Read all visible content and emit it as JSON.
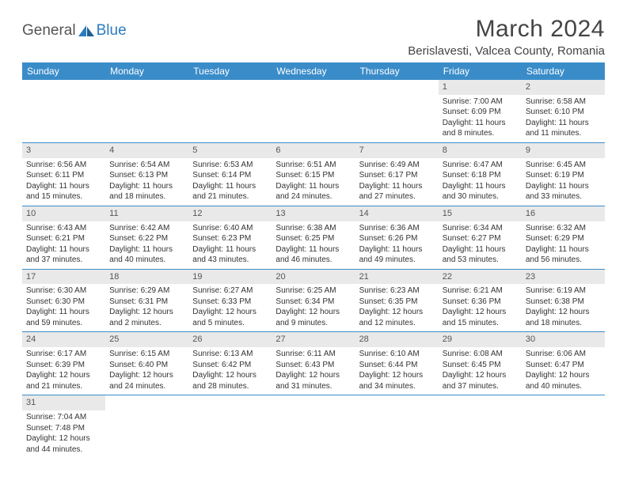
{
  "brand": {
    "part1": "General",
    "part2": "Blue"
  },
  "title": "March 2024",
  "location": "Berislavesti, Valcea County, Romania",
  "colors": {
    "header_bg": "#3a8cc9",
    "header_fg": "#ffffff",
    "daynum_bg": "#e9e9e9",
    "row_border": "#3a8cc9",
    "brand_accent": "#2b7bbf"
  },
  "weekdays": [
    "Sunday",
    "Monday",
    "Tuesday",
    "Wednesday",
    "Thursday",
    "Friday",
    "Saturday"
  ],
  "weeks": [
    [
      {
        "empty": true
      },
      {
        "empty": true
      },
      {
        "empty": true
      },
      {
        "empty": true
      },
      {
        "empty": true
      },
      {
        "n": "1",
        "sr": "Sunrise: 7:00 AM",
        "ss": "Sunset: 6:09 PM",
        "dl": "Daylight: 11 hours and 8 minutes."
      },
      {
        "n": "2",
        "sr": "Sunrise: 6:58 AM",
        "ss": "Sunset: 6:10 PM",
        "dl": "Daylight: 11 hours and 11 minutes."
      }
    ],
    [
      {
        "n": "3",
        "sr": "Sunrise: 6:56 AM",
        "ss": "Sunset: 6:11 PM",
        "dl": "Daylight: 11 hours and 15 minutes."
      },
      {
        "n": "4",
        "sr": "Sunrise: 6:54 AM",
        "ss": "Sunset: 6:13 PM",
        "dl": "Daylight: 11 hours and 18 minutes."
      },
      {
        "n": "5",
        "sr": "Sunrise: 6:53 AM",
        "ss": "Sunset: 6:14 PM",
        "dl": "Daylight: 11 hours and 21 minutes."
      },
      {
        "n": "6",
        "sr": "Sunrise: 6:51 AM",
        "ss": "Sunset: 6:15 PM",
        "dl": "Daylight: 11 hours and 24 minutes."
      },
      {
        "n": "7",
        "sr": "Sunrise: 6:49 AM",
        "ss": "Sunset: 6:17 PM",
        "dl": "Daylight: 11 hours and 27 minutes."
      },
      {
        "n": "8",
        "sr": "Sunrise: 6:47 AM",
        "ss": "Sunset: 6:18 PM",
        "dl": "Daylight: 11 hours and 30 minutes."
      },
      {
        "n": "9",
        "sr": "Sunrise: 6:45 AM",
        "ss": "Sunset: 6:19 PM",
        "dl": "Daylight: 11 hours and 33 minutes."
      }
    ],
    [
      {
        "n": "10",
        "sr": "Sunrise: 6:43 AM",
        "ss": "Sunset: 6:21 PM",
        "dl": "Daylight: 11 hours and 37 minutes."
      },
      {
        "n": "11",
        "sr": "Sunrise: 6:42 AM",
        "ss": "Sunset: 6:22 PM",
        "dl": "Daylight: 11 hours and 40 minutes."
      },
      {
        "n": "12",
        "sr": "Sunrise: 6:40 AM",
        "ss": "Sunset: 6:23 PM",
        "dl": "Daylight: 11 hours and 43 minutes."
      },
      {
        "n": "13",
        "sr": "Sunrise: 6:38 AM",
        "ss": "Sunset: 6:25 PM",
        "dl": "Daylight: 11 hours and 46 minutes."
      },
      {
        "n": "14",
        "sr": "Sunrise: 6:36 AM",
        "ss": "Sunset: 6:26 PM",
        "dl": "Daylight: 11 hours and 49 minutes."
      },
      {
        "n": "15",
        "sr": "Sunrise: 6:34 AM",
        "ss": "Sunset: 6:27 PM",
        "dl": "Daylight: 11 hours and 53 minutes."
      },
      {
        "n": "16",
        "sr": "Sunrise: 6:32 AM",
        "ss": "Sunset: 6:29 PM",
        "dl": "Daylight: 11 hours and 56 minutes."
      }
    ],
    [
      {
        "n": "17",
        "sr": "Sunrise: 6:30 AM",
        "ss": "Sunset: 6:30 PM",
        "dl": "Daylight: 11 hours and 59 minutes."
      },
      {
        "n": "18",
        "sr": "Sunrise: 6:29 AM",
        "ss": "Sunset: 6:31 PM",
        "dl": "Daylight: 12 hours and 2 minutes."
      },
      {
        "n": "19",
        "sr": "Sunrise: 6:27 AM",
        "ss": "Sunset: 6:33 PM",
        "dl": "Daylight: 12 hours and 5 minutes."
      },
      {
        "n": "20",
        "sr": "Sunrise: 6:25 AM",
        "ss": "Sunset: 6:34 PM",
        "dl": "Daylight: 12 hours and 9 minutes."
      },
      {
        "n": "21",
        "sr": "Sunrise: 6:23 AM",
        "ss": "Sunset: 6:35 PM",
        "dl": "Daylight: 12 hours and 12 minutes."
      },
      {
        "n": "22",
        "sr": "Sunrise: 6:21 AM",
        "ss": "Sunset: 6:36 PM",
        "dl": "Daylight: 12 hours and 15 minutes."
      },
      {
        "n": "23",
        "sr": "Sunrise: 6:19 AM",
        "ss": "Sunset: 6:38 PM",
        "dl": "Daylight: 12 hours and 18 minutes."
      }
    ],
    [
      {
        "n": "24",
        "sr": "Sunrise: 6:17 AM",
        "ss": "Sunset: 6:39 PM",
        "dl": "Daylight: 12 hours and 21 minutes."
      },
      {
        "n": "25",
        "sr": "Sunrise: 6:15 AM",
        "ss": "Sunset: 6:40 PM",
        "dl": "Daylight: 12 hours and 24 minutes."
      },
      {
        "n": "26",
        "sr": "Sunrise: 6:13 AM",
        "ss": "Sunset: 6:42 PM",
        "dl": "Daylight: 12 hours and 28 minutes."
      },
      {
        "n": "27",
        "sr": "Sunrise: 6:11 AM",
        "ss": "Sunset: 6:43 PM",
        "dl": "Daylight: 12 hours and 31 minutes."
      },
      {
        "n": "28",
        "sr": "Sunrise: 6:10 AM",
        "ss": "Sunset: 6:44 PM",
        "dl": "Daylight: 12 hours and 34 minutes."
      },
      {
        "n": "29",
        "sr": "Sunrise: 6:08 AM",
        "ss": "Sunset: 6:45 PM",
        "dl": "Daylight: 12 hours and 37 minutes."
      },
      {
        "n": "30",
        "sr": "Sunrise: 6:06 AM",
        "ss": "Sunset: 6:47 PM",
        "dl": "Daylight: 12 hours and 40 minutes."
      }
    ],
    [
      {
        "n": "31",
        "sr": "Sunrise: 7:04 AM",
        "ss": "Sunset: 7:48 PM",
        "dl": "Daylight: 12 hours and 44 minutes."
      },
      {
        "empty": true
      },
      {
        "empty": true
      },
      {
        "empty": true
      },
      {
        "empty": true
      },
      {
        "empty": true
      },
      {
        "empty": true
      }
    ]
  ]
}
